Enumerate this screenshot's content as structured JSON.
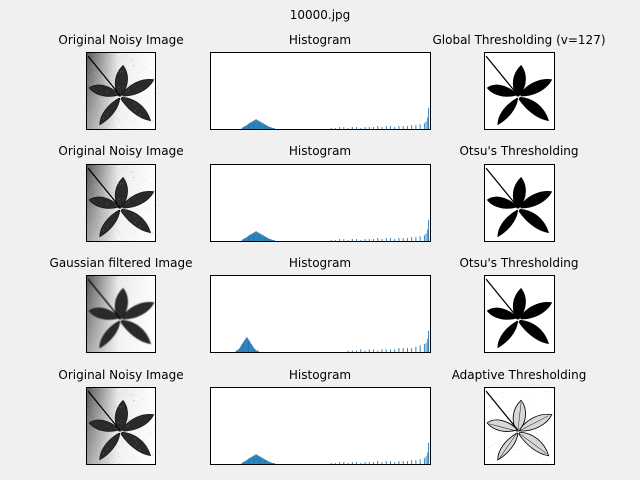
{
  "figure": {
    "title": "10000.jpg"
  },
  "colors": {
    "background": "#f0f0f0",
    "histogram_bar": "#1f77b4"
  },
  "rows": [
    {
      "left": {
        "title": "Original Noisy Image",
        "kind": "noisy"
      },
      "middle": {
        "title": "Histogram"
      },
      "right": {
        "title": "Global Thresholding (v=127)",
        "kind": "binary"
      },
      "histogram": {
        "x": [
          35,
          36,
          37,
          38,
          39,
          40,
          41,
          42,
          43,
          44,
          45,
          46,
          47,
          48,
          49,
          50,
          51,
          52,
          53,
          54,
          55,
          56,
          57,
          58,
          59,
          60,
          61,
          62,
          63,
          64,
          65,
          66,
          67,
          68,
          69,
          70,
          71,
          72,
          73,
          140,
          145,
          150,
          155,
          160,
          165,
          170,
          175,
          180,
          185,
          190,
          195,
          200,
          205,
          210,
          215,
          220,
          225,
          230,
          235,
          240,
          245,
          250,
          252,
          254,
          255
        ],
        "y": [
          1,
          2,
          2,
          3,
          3,
          4,
          4,
          5,
          6,
          6,
          7,
          7,
          8,
          8,
          9,
          9,
          10,
          10,
          9,
          9,
          8,
          8,
          7,
          7,
          6,
          6,
          5,
          5,
          4,
          4,
          3,
          3,
          2,
          2,
          2,
          1,
          1,
          1,
          1,
          1,
          1,
          2,
          2,
          1,
          2,
          2,
          1,
          2,
          2,
          2,
          3,
          2,
          3,
          3,
          2,
          3,
          3,
          3,
          4,
          4,
          5,
          6,
          8,
          12,
          22
        ]
      }
    },
    {
      "left": {
        "title": "Original Noisy Image",
        "kind": "noisy"
      },
      "middle": {
        "title": "Histogram"
      },
      "right": {
        "title": "Otsu's Thresholding",
        "kind": "binary"
      },
      "histogram": {
        "x": [
          35,
          36,
          37,
          38,
          39,
          40,
          41,
          42,
          43,
          44,
          45,
          46,
          47,
          48,
          49,
          50,
          51,
          52,
          53,
          54,
          55,
          56,
          57,
          58,
          59,
          60,
          61,
          62,
          63,
          64,
          65,
          66,
          67,
          68,
          69,
          70,
          71,
          72,
          73,
          140,
          145,
          150,
          155,
          160,
          165,
          170,
          175,
          180,
          185,
          190,
          195,
          200,
          205,
          210,
          215,
          220,
          225,
          230,
          235,
          240,
          245,
          250,
          252,
          254,
          255
        ],
        "y": [
          1,
          2,
          2,
          3,
          3,
          4,
          4,
          5,
          6,
          6,
          7,
          7,
          8,
          8,
          9,
          9,
          10,
          10,
          9,
          9,
          8,
          8,
          7,
          7,
          6,
          6,
          5,
          5,
          4,
          4,
          3,
          3,
          2,
          2,
          2,
          1,
          1,
          1,
          1,
          1,
          1,
          2,
          2,
          1,
          2,
          2,
          1,
          2,
          2,
          2,
          3,
          2,
          3,
          3,
          2,
          3,
          3,
          3,
          4,
          4,
          5,
          6,
          8,
          12,
          22
        ]
      }
    },
    {
      "left": {
        "title": "Gaussian filtered Image",
        "kind": "gaussian"
      },
      "middle": {
        "title": "Histogram"
      },
      "right": {
        "title": "Otsu's Thresholding",
        "kind": "binary"
      },
      "histogram": {
        "x": [
          28,
          29,
          30,
          31,
          32,
          33,
          34,
          35,
          36,
          37,
          38,
          39,
          40,
          41,
          42,
          43,
          44,
          45,
          46,
          47,
          48,
          49,
          50,
          51,
          52,
          53,
          54,
          160,
          165,
          170,
          175,
          180,
          185,
          190,
          195,
          200,
          205,
          210,
          215,
          220,
          225,
          230,
          235,
          240,
          245,
          250,
          252,
          254,
          255
        ],
        "y": [
          1,
          1,
          2,
          2,
          3,
          4,
          5,
          6,
          7,
          8,
          9,
          10,
          11,
          11,
          10,
          9,
          8,
          7,
          6,
          5,
          4,
          3,
          2,
          2,
          1,
          1,
          1,
          1,
          1,
          1,
          2,
          1,
          2,
          2,
          1,
          2,
          2,
          2,
          2,
          3,
          3,
          3,
          3,
          4,
          5,
          6,
          7,
          10,
          16
        ]
      }
    },
    {
      "left": {
        "title": "Original Noisy Image",
        "kind": "noisy"
      },
      "middle": {
        "title": "Histogram"
      },
      "right": {
        "title": "Adaptive Thresholding",
        "kind": "adaptive"
      },
      "histogram": {
        "x": [
          35,
          36,
          37,
          38,
          39,
          40,
          41,
          42,
          43,
          44,
          45,
          46,
          47,
          48,
          49,
          50,
          51,
          52,
          53,
          54,
          55,
          56,
          57,
          58,
          59,
          60,
          61,
          62,
          63,
          64,
          65,
          66,
          67,
          68,
          69,
          70,
          71,
          72,
          73,
          140,
          145,
          150,
          155,
          160,
          165,
          170,
          175,
          180,
          185,
          190,
          195,
          200,
          205,
          210,
          215,
          220,
          225,
          230,
          235,
          240,
          245,
          250,
          252,
          254,
          255
        ],
        "y": [
          1,
          2,
          2,
          3,
          3,
          4,
          4,
          5,
          6,
          6,
          7,
          7,
          8,
          8,
          9,
          9,
          10,
          10,
          9,
          9,
          8,
          8,
          7,
          7,
          6,
          6,
          5,
          5,
          4,
          4,
          3,
          3,
          2,
          2,
          2,
          1,
          1,
          1,
          1,
          1,
          1,
          2,
          2,
          1,
          2,
          2,
          1,
          2,
          2,
          2,
          3,
          2,
          3,
          3,
          2,
          3,
          3,
          3,
          4,
          4,
          5,
          6,
          8,
          12,
          22
        ]
      }
    }
  ]
}
